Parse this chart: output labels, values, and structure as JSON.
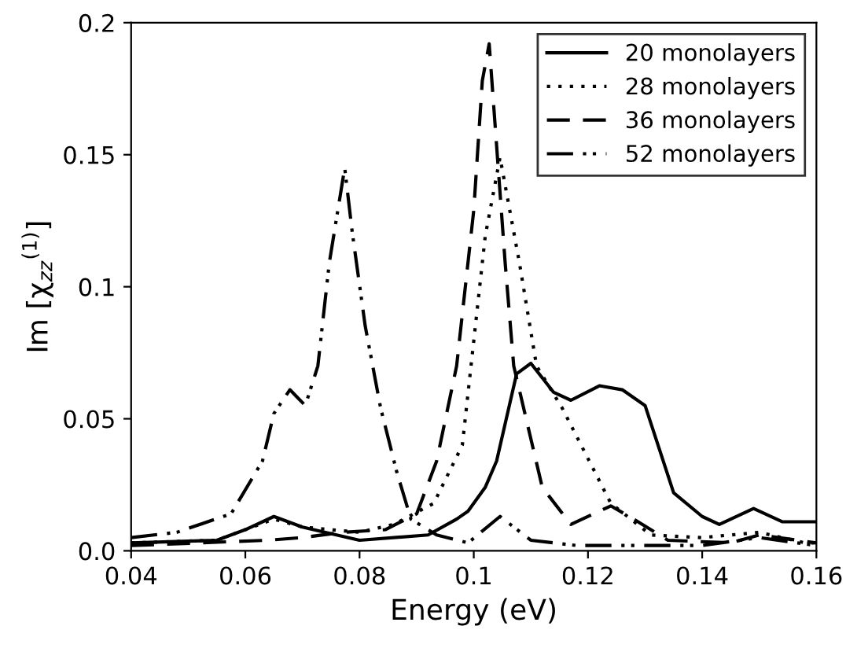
{
  "chart_data": {
    "type": "line",
    "xlabel": "Energy (eV)",
    "ylabel": "Im [χ$_{zz}$$^{(1)}$]",
    "xlim": [
      0.04,
      0.16
    ],
    "ylim": [
      0,
      0.2
    ],
    "xticks": [
      0.04,
      0.06,
      0.08,
      0.1,
      0.12,
      0.14,
      0.16
    ],
    "yticks": [
      {
        "value": 0,
        "label": "0.0"
      },
      0.05,
      0.1,
      0.15,
      0.2
    ],
    "grid": false,
    "legend": "top right",
    "marker": "none",
    "series": [
      {
        "name": "20 monolayers",
        "color": "#000000",
        "line_style": "solid",
        "x": [
          0.04,
          0.055,
          0.06,
          0.065,
          0.07,
          0.08,
          0.092,
          0.097,
          0.099,
          0.102,
          0.104,
          0.1075,
          0.11,
          0.114,
          0.117,
          0.122,
          0.126,
          0.13,
          0.135,
          0.14,
          0.143,
          0.149,
          0.154,
          0.16
        ],
        "values": [
          0.003,
          0.004,
          0.008,
          0.013,
          0.009,
          0.004,
          0.006,
          0.012,
          0.015,
          0.024,
          0.034,
          0.067,
          0.071,
          0.06,
          0.057,
          0.0625,
          0.061,
          0.055,
          0.022,
          0.013,
          0.01,
          0.016,
          0.011,
          0.011
        ]
      },
      {
        "name": "28 monolayers",
        "color": "#000000",
        "line_style": "dotted",
        "x": [
          0.04,
          0.055,
          0.06,
          0.065,
          0.07,
          0.08,
          0.086,
          0.093,
          0.098,
          0.102,
          0.1046,
          0.108,
          0.111,
          0.1155,
          0.124,
          0.131,
          0.14,
          0.15,
          0.158,
          0.16
        ],
        "values": [
          0.003,
          0.004,
          0.008,
          0.012,
          0.009,
          0.007,
          0.01,
          0.018,
          0.04,
          0.119,
          0.149,
          0.109,
          0.07,
          0.054,
          0.018,
          0.006,
          0.005,
          0.007,
          0.003,
          0.003
        ]
      },
      {
        "name": "36 monolayers",
        "color": "#000000",
        "line_style": "dashed",
        "x": [
          0.04,
          0.064,
          0.07,
          0.077,
          0.0845,
          0.09,
          0.0935,
          0.097,
          0.1,
          0.1015,
          0.1027,
          0.1055,
          0.107,
          0.112,
          0.117,
          0.124,
          0.128,
          0.134,
          0.145,
          0.15,
          0.16
        ],
        "values": [
          0.002,
          0.004,
          0.005,
          0.007,
          0.008,
          0.014,
          0.034,
          0.07,
          0.129,
          0.178,
          0.192,
          0.109,
          0.07,
          0.024,
          0.01,
          0.017,
          0.012,
          0.004,
          0.003,
          0.006,
          0.003
        ]
      },
      {
        "name": "52 monolayers",
        "color": "#000000",
        "line_style": "dashdotdot",
        "x": [
          0.04,
          0.048,
          0.0575,
          0.063,
          0.065,
          0.0678,
          0.0705,
          0.0727,
          0.0747,
          0.0774,
          0.0787,
          0.081,
          0.0837,
          0.0865,
          0.089,
          0.0935,
          0.099,
          0.1046,
          0.11,
          0.118,
          0.14,
          0.15,
          0.16
        ],
        "values": [
          0.005,
          0.007,
          0.014,
          0.034,
          0.052,
          0.061,
          0.055,
          0.07,
          0.109,
          0.145,
          0.121,
          0.085,
          0.054,
          0.03,
          0.012,
          0.006,
          0.003,
          0.013,
          0.004,
          0.002,
          0.002,
          0.005,
          0.002
        ]
      }
    ]
  }
}
